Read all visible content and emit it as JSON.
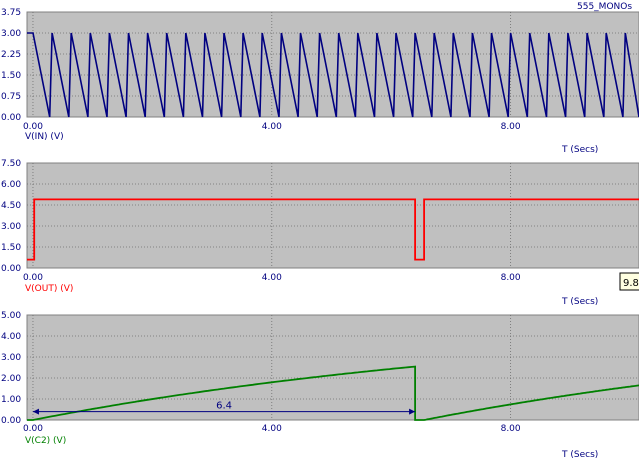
{
  "window": {
    "title": "555_MONOs"
  },
  "cursor_readout": "9.8",
  "chart_data": [
    {
      "type": "line",
      "series_label": "V(IN) (V)",
      "xlabel": "T (Secs)",
      "x_ticks": [
        "0.00",
        "4.00",
        "8.00"
      ],
      "x_tick_values": [
        0,
        4,
        8
      ],
      "y_ticks": [
        "0.00",
        "0.75",
        "1.50",
        "2.25",
        "3.00",
        "3.75"
      ],
      "y_tick_values": [
        0,
        0.75,
        1.5,
        2.25,
        3.0,
        3.75
      ],
      "xlim": [
        -0.1,
        10.15
      ],
      "ylim": [
        0,
        3.75
      ],
      "grid": true,
      "color": "#000080",
      "waveform": {
        "kind": "sawtooth",
        "period": 0.32,
        "start": 0.0,
        "high": 3.0,
        "low": 0.0,
        "rise_time": 0.04
      }
    },
    {
      "type": "line",
      "series_label": "V(OUT) (V)",
      "xlabel": "T (Secs)",
      "x_ticks": [
        "0.00",
        "4.00",
        "8.00"
      ],
      "x_tick_values": [
        0,
        4,
        8
      ],
      "y_ticks": [
        "0.00",
        "1.50",
        "3.00",
        "4.50",
        "6.00",
        "7.50"
      ],
      "y_tick_values": [
        0,
        1.5,
        3.0,
        4.5,
        6.0,
        7.5
      ],
      "xlim": [
        -0.1,
        10.15
      ],
      "ylim": [
        0,
        7.5
      ],
      "grid": true,
      "color": "#ff0000",
      "points": [
        [
          -0.1,
          0.6
        ],
        [
          0.02,
          0.6
        ],
        [
          0.02,
          4.9
        ],
        [
          6.4,
          4.9
        ],
        [
          6.4,
          0.6
        ],
        [
          6.55,
          0.6
        ],
        [
          6.55,
          4.9
        ],
        [
          10.15,
          4.9
        ]
      ]
    },
    {
      "type": "line",
      "series_label": "V(C2) (V)",
      "xlabel": "T (Secs)",
      "x_ticks": [
        "0.00",
        "4.00",
        "8.00"
      ],
      "x_tick_values": [
        0,
        4,
        8
      ],
      "y_ticks": [
        "0.00",
        "1.00",
        "2.00",
        "3.00",
        "4.00",
        "5.00"
      ],
      "y_tick_values": [
        0,
        1,
        2,
        3,
        4,
        5
      ],
      "xlim": [
        -0.1,
        10.15
      ],
      "ylim": [
        0,
        5
      ],
      "grid": true,
      "color": "#008000",
      "segments": [
        {
          "t0": 0.0,
          "t1": 6.4,
          "vmax": 5.0,
          "tau": 9.0
        },
        {
          "t0": 6.55,
          "t1": 10.15,
          "vmax": 5.0,
          "tau": 9.0
        }
      ],
      "drop_to": 0.0,
      "annotation": {
        "label": "6.4",
        "x_start": 0.0,
        "x_end": 6.4,
        "y": 0.4
      }
    }
  ]
}
